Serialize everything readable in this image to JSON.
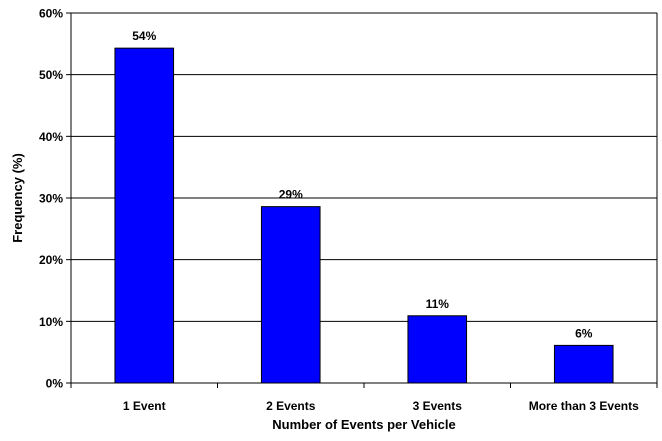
{
  "chart_data": {
    "type": "bar",
    "title": "",
    "xlabel": "Number of Events per Vehicle",
    "ylabel": "Frequency (%)",
    "categories": [
      "1 Event",
      "2 Events",
      "3 Events",
      "More than 3 Events"
    ],
    "values": [
      54.3,
      28.6,
      10.9,
      6.1
    ],
    "data_labels": [
      "54%",
      "29%",
      "11%",
      "6%"
    ],
    "ylim": [
      0,
      60
    ],
    "yticks": [
      0,
      10,
      20,
      30,
      40,
      50,
      60
    ],
    "ytick_labels": [
      "0%",
      "10%",
      "20%",
      "30%",
      "40%",
      "50%",
      "60%"
    ],
    "grid": true,
    "legend": "none",
    "bar_color": "#0000ff",
    "bar_edge_color": "#000000"
  }
}
